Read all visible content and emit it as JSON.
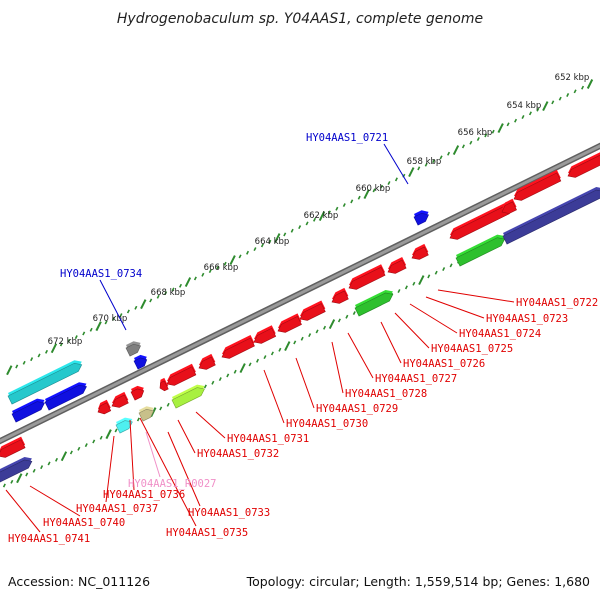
{
  "title": "Hydrogenobaculum sp. Y04AAS1, complete genome",
  "footer": {
    "accession": "Accession: NC_011126",
    "summary": "Topology: circular; Length: 1,559,514 bp; Genes: 1,680"
  },
  "scale_ticks": [
    "652 kbp",
    "654 kbp",
    "656 kbp",
    "658 kbp",
    "660 kbp",
    "662 kbp",
    "664 kbp",
    "666 kbp",
    "668 kbp",
    "670 kbp",
    "672 kbp"
  ],
  "colors": {
    "backbone": "#8c8c8c",
    "tick": "#2e8b2e",
    "gene_red": "#e8101a",
    "gene_blue": "#1010e0",
    "gene_cyan": "#26c8cc",
    "gene_green": "#2ec02e",
    "gene_lime": "#a8f040",
    "gene_navy": "#3c3c98",
    "gene_gray": "#808080",
    "gene_tan": "#c8c08a",
    "gene_lightcyan": "#4ef0f0",
    "label_red": "#e00000",
    "label_blue": "#0000cc",
    "label_pink": "#f090c8"
  },
  "gene_labels": [
    {
      "text": "HY04AAS1_0721",
      "color": "label_blue"
    },
    {
      "text": "HY04AAS1_0734",
      "color": "label_blue"
    },
    {
      "text": "HY04AAS1_0722",
      "color": "label_red"
    },
    {
      "text": "HY04AAS1_0723",
      "color": "label_red"
    },
    {
      "text": "HY04AAS1_0724",
      "color": "label_red"
    },
    {
      "text": "HY04AAS1_0725",
      "color": "label_red"
    },
    {
      "text": "HY04AAS1_0726",
      "color": "label_red"
    },
    {
      "text": "HY04AAS1_0727",
      "color": "label_red"
    },
    {
      "text": "HY04AAS1_0728",
      "color": "label_red"
    },
    {
      "text": "HY04AAS1_0729",
      "color": "label_red"
    },
    {
      "text": "HY04AAS1_0730",
      "color": "label_red"
    },
    {
      "text": "HY04AAS1_0731",
      "color": "label_red"
    },
    {
      "text": "HY04AAS1_0732",
      "color": "label_red"
    },
    {
      "text": "HY04AAS1_R0027",
      "color": "label_pink"
    },
    {
      "text": "HY04AAS1_0736",
      "color": "label_red"
    },
    {
      "text": "HY04AAS1_0737",
      "color": "label_red"
    },
    {
      "text": "HY04AAS1_0733",
      "color": "label_red"
    },
    {
      "text": "HY04AAS1_0740",
      "color": "label_red"
    },
    {
      "text": "HY04AAS1_0735",
      "color": "label_red"
    },
    {
      "text": "HY04AAS1_0741",
      "color": "label_red"
    }
  ]
}
